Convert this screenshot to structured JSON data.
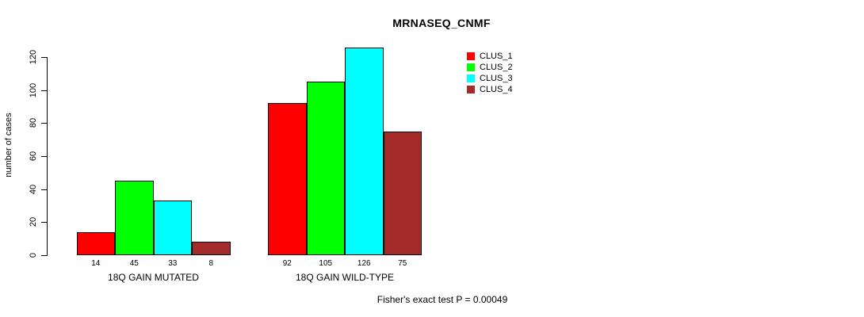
{
  "chart_data": {
    "type": "bar",
    "title": "MRNASEQ_CNMF",
    "ylabel": "number of cases",
    "xlabel": "",
    "yticks": [
      0,
      20,
      40,
      60,
      80,
      100,
      120
    ],
    "ylim": [
      0,
      120
    ],
    "grid": false,
    "legend_position": "top-right",
    "categories": [
      "18Q GAIN MUTATED",
      "18Q GAIN WILD-TYPE"
    ],
    "series": [
      {
        "name": "CLUS_1",
        "color": "#ff0000",
        "values": [
          14,
          92
        ]
      },
      {
        "name": "CLUS_2",
        "color": "#00ff00",
        "values": [
          45,
          105
        ]
      },
      {
        "name": "CLUS_3",
        "color": "#00ffff",
        "values": [
          33,
          126
        ]
      },
      {
        "name": "CLUS_4",
        "color": "#a52a2a",
        "values": [
          8,
          75
        ]
      }
    ],
    "bar_value_labels": [
      [
        14,
        45,
        33,
        8
      ],
      [
        92,
        105,
        126,
        75
      ]
    ],
    "annotation": "Fisher's exact test P = 0.00049"
  }
}
